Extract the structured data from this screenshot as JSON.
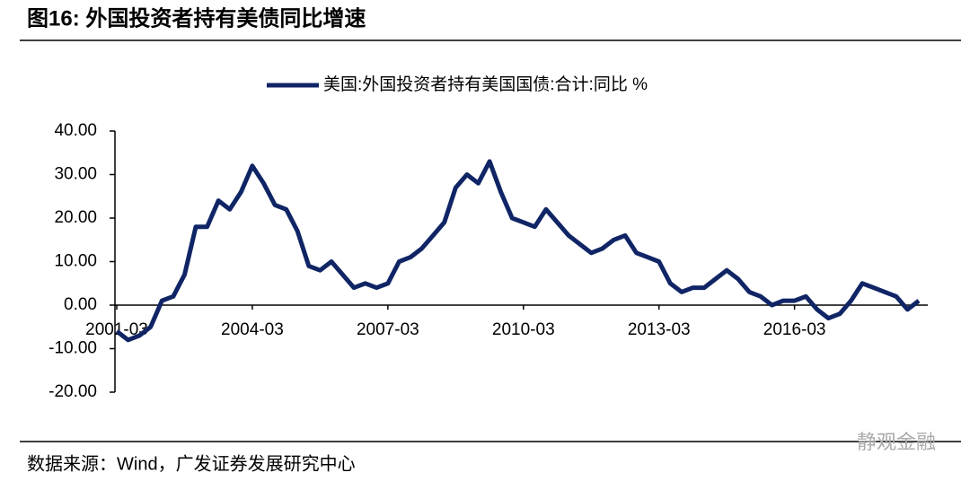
{
  "header": {
    "title": "图16:  外国投资者持有美债同比增速"
  },
  "chart_data": {
    "type": "line",
    "legend_position": "top",
    "categories": [
      "2001-03",
      null,
      null,
      null,
      null,
      null,
      null,
      null,
      null,
      null,
      null,
      null,
      "2004-03",
      null,
      null,
      null,
      null,
      null,
      null,
      null,
      null,
      null,
      null,
      null,
      "2007-03",
      null,
      null,
      null,
      null,
      null,
      null,
      null,
      null,
      null,
      null,
      null,
      "2010-03",
      null,
      null,
      null,
      null,
      null,
      null,
      null,
      null,
      null,
      null,
      null,
      "2013-03",
      null,
      null,
      null,
      null,
      null,
      null,
      null,
      null,
      null,
      null,
      null,
      "2016-03",
      null,
      null,
      null,
      null,
      null,
      null,
      null,
      null,
      null,
      null,
      null
    ],
    "series": [
      {
        "name": "美国:外国投资者持有美国国债:合计:同比 %",
        "color": "#102565",
        "values": [
          -6,
          -8,
          -7,
          -5,
          1,
          2,
          7,
          18,
          18,
          24,
          22,
          26,
          32,
          28,
          23,
          22,
          17,
          9,
          8,
          10,
          7,
          4,
          5,
          4,
          5,
          10,
          11,
          13,
          16,
          19,
          27,
          30,
          28,
          33,
          26,
          20,
          19,
          18,
          22,
          19,
          16,
          14,
          12,
          13,
          15,
          16,
          12,
          11,
          10,
          5,
          3,
          4,
          4,
          6,
          8,
          6,
          3,
          2,
          0,
          1,
          1,
          2,
          -1,
          -3,
          -2,
          1,
          5,
          4,
          3,
          2,
          -1,
          1
        ]
      }
    ],
    "ylim": [
      -20,
      40
    ],
    "yticks": [
      {
        "value": -20,
        "label": "-20.00"
      },
      {
        "value": -10,
        "label": "-10.00"
      },
      {
        "value": 0,
        "label": "0.00"
      },
      {
        "value": 10,
        "label": "10.00"
      },
      {
        "value": 20,
        "label": "20.00"
      },
      {
        "value": 30,
        "label": "30.00"
      },
      {
        "value": 40,
        "label": "40.00"
      }
    ]
  },
  "footer": {
    "source": "数据来源：Wind，广发证券发展研究中心",
    "watermark": "静观金融"
  }
}
